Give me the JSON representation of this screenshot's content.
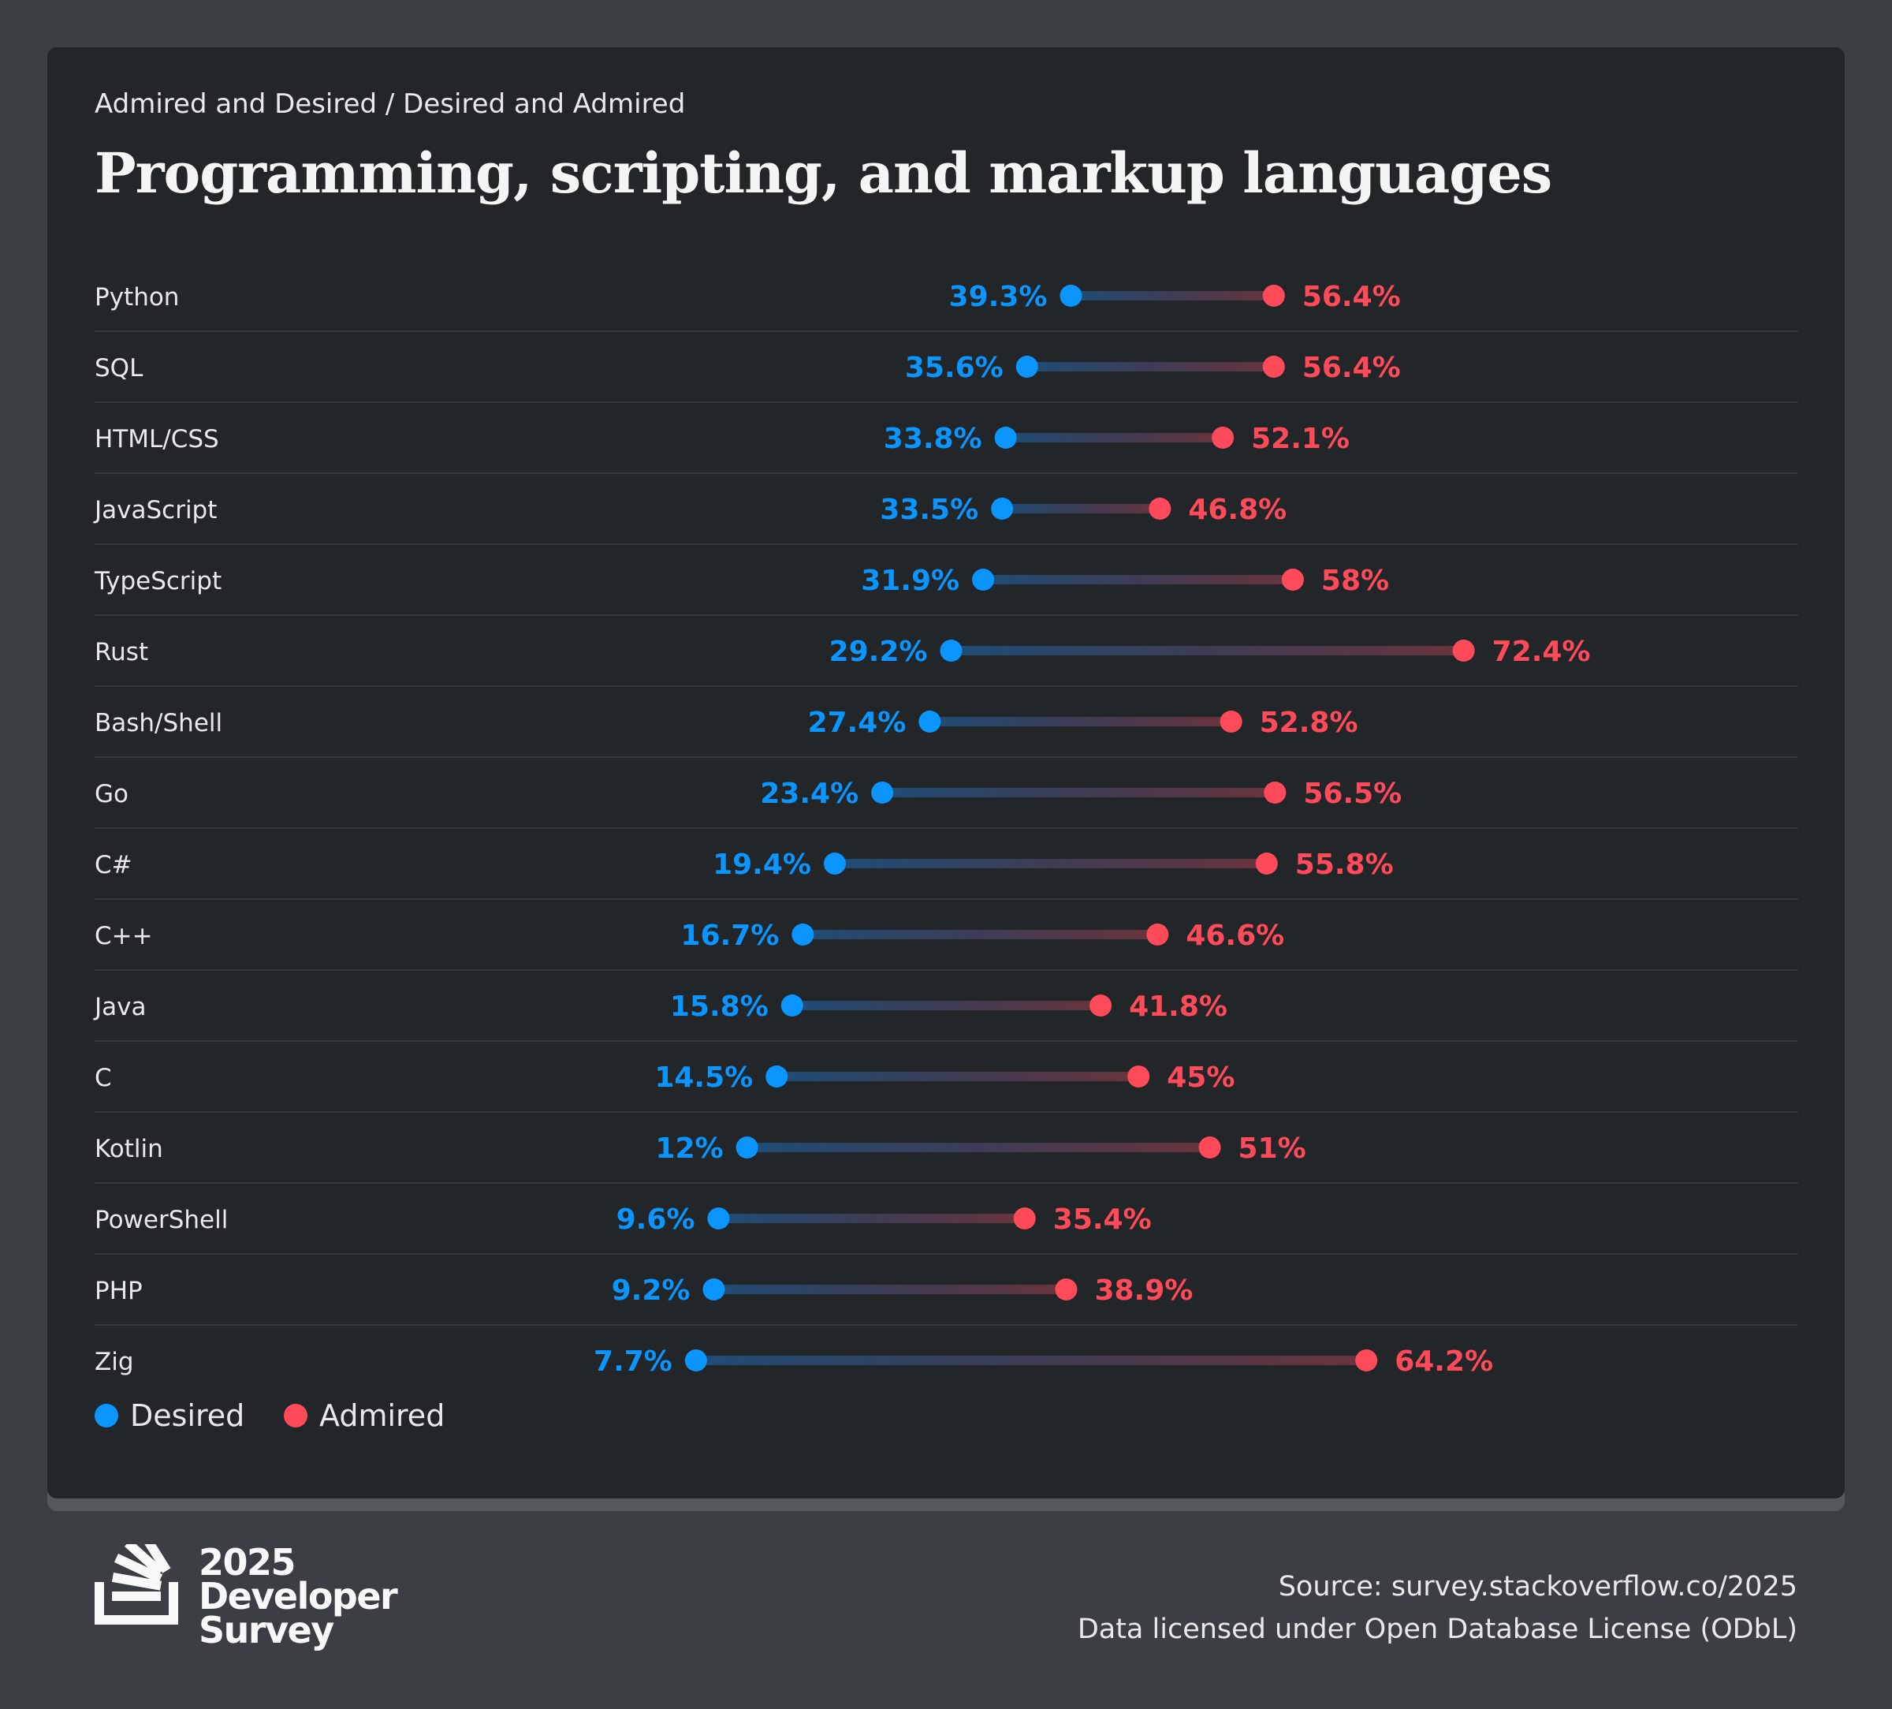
{
  "header": {
    "subtitle": "Admired and Desired / Desired and Admired",
    "title": "Programming, scripting, and markup languages"
  },
  "colors": {
    "desired": "#0a95ff",
    "admired": "#ff4a5a",
    "background": "#232629"
  },
  "chart_data": {
    "type": "dumbbell",
    "title": "Programming, scripting, and markup languages",
    "categories": [
      "Python",
      "SQL",
      "HTML/CSS",
      "JavaScript",
      "TypeScript",
      "Rust",
      "Bash/Shell",
      "Go",
      "C#",
      "C++",
      "Java",
      "C",
      "Kotlin",
      "PowerShell",
      "PHP",
      "Zig"
    ],
    "series": [
      {
        "name": "Desired",
        "values": [
          39.3,
          35.6,
          33.8,
          33.5,
          31.9,
          29.2,
          27.4,
          23.4,
          19.4,
          16.7,
          15.8,
          14.5,
          12,
          9.6,
          9.2,
          7.7
        ]
      },
      {
        "name": "Admired",
        "values": [
          56.4,
          56.4,
          52.1,
          46.8,
          58,
          72.4,
          52.8,
          56.5,
          55.8,
          46.6,
          41.8,
          45,
          51,
          35.4,
          38.9,
          64.2
        ]
      }
    ],
    "value_suffix": "%",
    "legend": "bottom-left"
  },
  "legend": {
    "desired": "Desired",
    "admired": "Admired"
  },
  "footer": {
    "source": "Source: survey.stackoverflow.co/2025",
    "license": "Data licensed under Open Database License (ODbL)",
    "logo_text": [
      "2025",
      "Developer",
      "Survey"
    ]
  }
}
